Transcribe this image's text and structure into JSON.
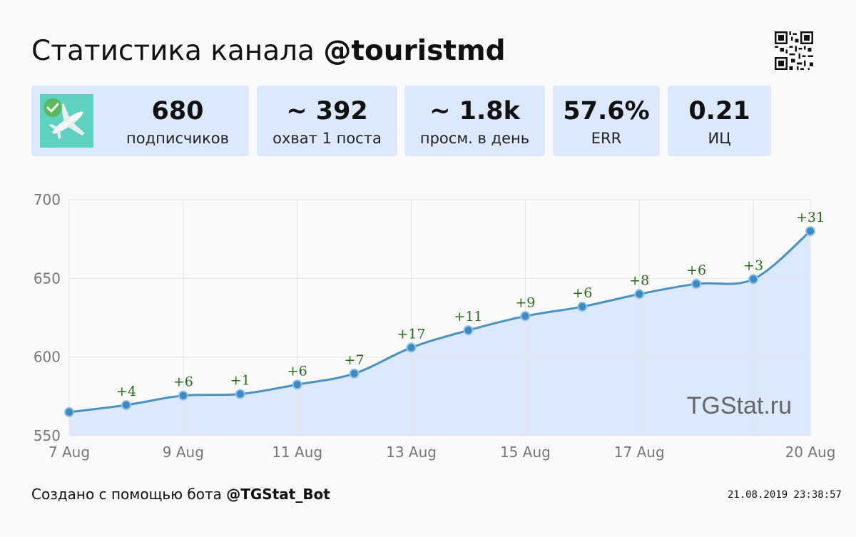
{
  "header": {
    "title_prefix": "Статистика канала ",
    "channel": "@touristmd"
  },
  "stats": [
    {
      "value": "680",
      "label": "подписчиков"
    },
    {
      "value": "~ 392",
      "label": "охват 1 поста"
    },
    {
      "value": "~ 1.8k",
      "label": "просм. в день"
    },
    {
      "value": "57.6%",
      "label": "ERR"
    },
    {
      "value": "0.21",
      "label": "ИЦ"
    }
  ],
  "chart_data": {
    "type": "area",
    "x": [
      "7 Aug",
      "8 Aug",
      "9 Aug",
      "10 Aug",
      "11 Aug",
      "12 Aug",
      "13 Aug",
      "14 Aug",
      "15 Aug",
      "16 Aug",
      "17 Aug",
      "18 Aug",
      "19 Aug",
      "20 Aug"
    ],
    "values": [
      565,
      569.5,
      575.5,
      576.5,
      582.5,
      589.5,
      606,
      617,
      626,
      632,
      640,
      646.5,
      649.5,
      680
    ],
    "data_labels": [
      "",
      "+4",
      "+6",
      "+1",
      "+6",
      "+7",
      "+17",
      "+11",
      "+9",
      "+6",
      "+8",
      "+6",
      "+3",
      "+31"
    ],
    "x_tick_labels": [
      "7 Aug",
      "9 Aug",
      "11 Aug",
      "13 Aug",
      "15 Aug",
      "17 Aug",
      "20 Aug"
    ],
    "y_ticks": [
      550,
      600,
      650,
      700
    ],
    "ylim": [
      550,
      700
    ],
    "grid": true,
    "line_color": "#4a90c2",
    "fill_color": "#dce8fb",
    "label_color": "#2d6a1e",
    "watermark": "TGStat.ru"
  },
  "footer": {
    "made_with": "Создано с помощью бота ",
    "bot": "@TGStat_Bot",
    "timestamp": "21.08.2019 23:38:57"
  }
}
